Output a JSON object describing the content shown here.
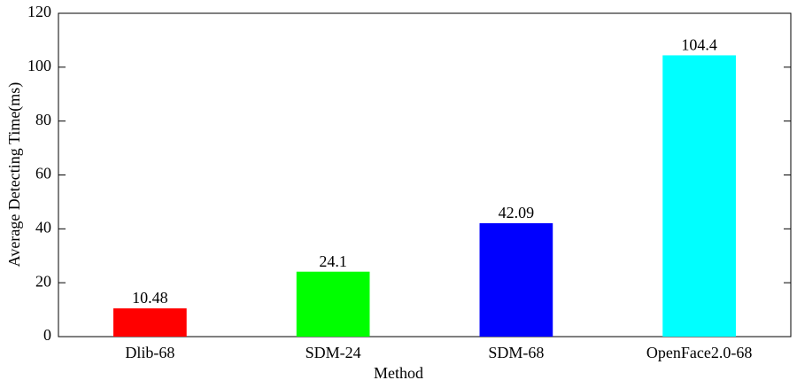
{
  "chart_data": {
    "type": "bar",
    "x_label": "Method",
    "y_label": "Average Detecting Time(ms)",
    "categories": [
      "Dlib-68",
      "SDM-24",
      "SDM-68",
      "OpenFace2.0-68"
    ],
    "values": [
      10.48,
      24.1,
      42.09,
      104.4
    ],
    "colors": [
      "#ff0000",
      "#00ff00",
      "#0000ff",
      "#00ffff"
    ],
    "ylim": [
      0,
      120
    ],
    "yticks": [
      0,
      20,
      40,
      60,
      80,
      100,
      120
    ],
    "grid": false
  }
}
